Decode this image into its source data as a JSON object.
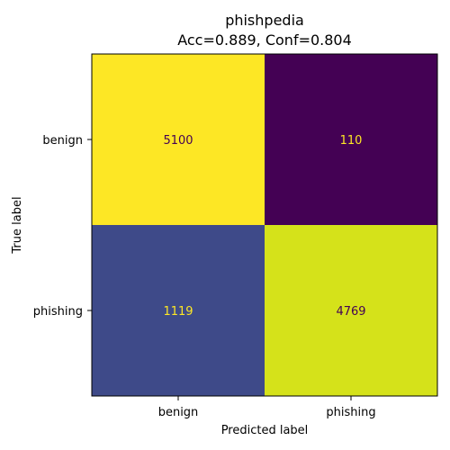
{
  "chart_data": {
    "type": "heatmap",
    "title": "phishpedia",
    "subtitle": "Acc=0.889, Conf=0.804",
    "xlabel": "Predicted label",
    "ylabel": "True label",
    "x_categories": [
      "benign",
      "phishing"
    ],
    "y_categories": [
      "benign",
      "phishing"
    ],
    "values": [
      [
        5100,
        110
      ],
      [
        1119,
        4769
      ]
    ],
    "colormap": "viridis",
    "colors": {
      "high": "#fde725",
      "low": "#440154",
      "cell_0_0": "#fde725",
      "cell_0_1": "#440154",
      "cell_1_0": "#3e4a89",
      "cell_1_1": "#d5e21a",
      "text_on_light": "#440154",
      "text_on_dark": "#fde725"
    }
  }
}
